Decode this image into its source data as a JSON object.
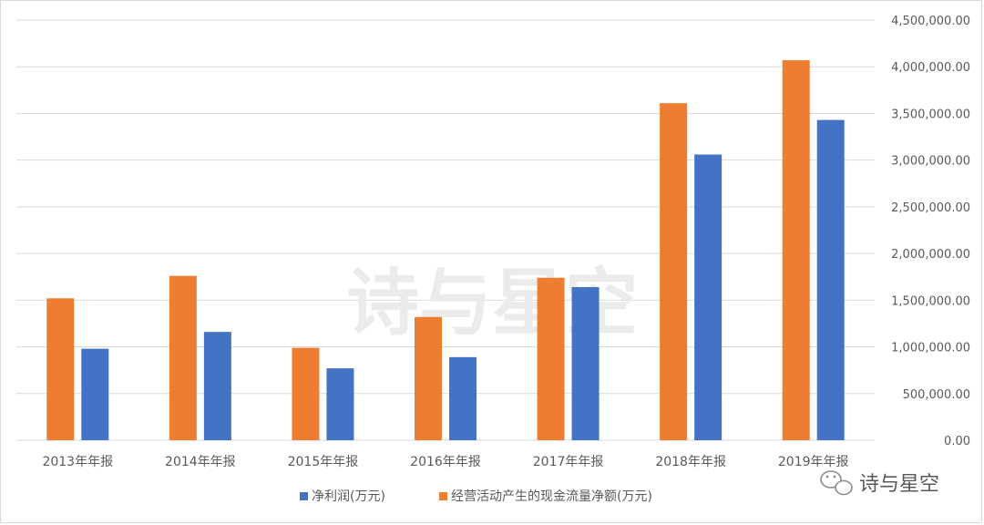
{
  "chart_data": {
    "type": "bar",
    "categories": [
      "2013年年报",
      "2014年年报",
      "2015年年报",
      "2016年年报",
      "2017年年报",
      "2018年年报",
      "2019年年报"
    ],
    "series": [
      {
        "name": "经营活动产生的现金流量净额(万元)",
        "color": "#ed7d31",
        "values": [
          1520000,
          1760000,
          990000,
          1320000,
          1740000,
          3610000,
          4070000
        ]
      },
      {
        "name": "净利润(万元)",
        "color": "#4472c4",
        "values": [
          980000,
          1160000,
          770000,
          890000,
          1640000,
          3060000,
          3430000
        ]
      }
    ],
    "legend_order": [
      1,
      0
    ],
    "ylim": [
      0,
      4500000
    ],
    "yticks": [
      "0.00",
      "500,000.00",
      "1,000,000.00",
      "1,500,000.00",
      "2,000,000.00",
      "2,500,000.00",
      "3,000,000.00",
      "3,500,000.00",
      "4,000,000.00",
      "4,500,000.00"
    ],
    "y_axis_side": "right",
    "grid": true,
    "legend_position": "bottom",
    "title": "",
    "xlabel": "",
    "ylabel": ""
  },
  "watermark": "诗与星空",
  "logo": {
    "text": "诗与星空",
    "icon": "wechat-icon"
  },
  "colors": {
    "grid": "#d9d9d9",
    "text": "#595959"
  }
}
